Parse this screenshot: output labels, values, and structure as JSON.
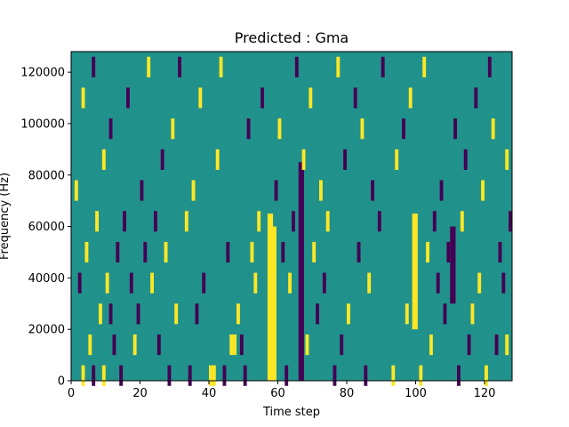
{
  "chart_data": {
    "type": "heatmap",
    "title": "Predicted : Gma",
    "xlabel": "Time step",
    "ylabel": "Frequency (Hz)",
    "xlim": [
      0,
      128
    ],
    "ylim": [
      0,
      128000
    ],
    "x_ticks": [
      0,
      20,
      40,
      60,
      80,
      100,
      120
    ],
    "y_ticks": [
      0,
      20000,
      40000,
      60000,
      80000,
      100000,
      120000
    ],
    "x_tick_labels": [
      "0",
      "20",
      "40",
      "60",
      "80",
      "100",
      "120"
    ],
    "y_tick_labels": [
      "0",
      "20000",
      "40000",
      "60000",
      "80000",
      "100000",
      "120000"
    ],
    "grid": false,
    "colormap": "viridis",
    "colors": {
      "background": "#21918c",
      "low": "#440154",
      "high": "#fde725"
    },
    "dense_columns": [
      {
        "time_step": 57,
        "value": "high",
        "y_from": 0,
        "y_to": 65000
      },
      {
        "time_step": 58,
        "value": "high",
        "y_from": 0,
        "y_to": 60000
      },
      {
        "time_step": 99,
        "value": "high",
        "y_from": 20000,
        "y_to": 65000
      },
      {
        "time_step": 110,
        "value": "low",
        "y_from": 30000,
        "y_to": 60000
      },
      {
        "time_step": 66,
        "value": "low",
        "y_from": 0,
        "y_to": 85000
      }
    ],
    "cells": [
      {
        "t": 3,
        "f": 2000,
        "v": "high"
      },
      {
        "t": 6,
        "f": 2000,
        "v": "low"
      },
      {
        "t": 9,
        "f": 2000,
        "v": "high"
      },
      {
        "t": 14,
        "f": 2000,
        "v": "low"
      },
      {
        "t": 28,
        "f": 2000,
        "v": "low"
      },
      {
        "t": 34,
        "f": 2000,
        "v": "low"
      },
      {
        "t": 40,
        "f": 2000,
        "v": "high"
      },
      {
        "t": 41,
        "f": 2000,
        "v": "high"
      },
      {
        "t": 44,
        "f": 2000,
        "v": "low"
      },
      {
        "t": 50,
        "f": 2000,
        "v": "low"
      },
      {
        "t": 62,
        "f": 2000,
        "v": "low"
      },
      {
        "t": 76,
        "f": 2000,
        "v": "low"
      },
      {
        "t": 85,
        "f": 2000,
        "v": "low"
      },
      {
        "t": 93,
        "f": 2000,
        "v": "high"
      },
      {
        "t": 101,
        "f": 2000,
        "v": "high"
      },
      {
        "t": 112,
        "f": 2000,
        "v": "low"
      },
      {
        "t": 120,
        "f": 2000,
        "v": "high"
      },
      {
        "t": 5,
        "f": 14000,
        "v": "high"
      },
      {
        "t": 12,
        "f": 14000,
        "v": "low"
      },
      {
        "t": 18,
        "f": 14000,
        "v": "high"
      },
      {
        "t": 25,
        "f": 14000,
        "v": "low"
      },
      {
        "t": 46,
        "f": 14000,
        "v": "high"
      },
      {
        "t": 47,
        "f": 14000,
        "v": "high"
      },
      {
        "t": 49,
        "f": 14000,
        "v": "low"
      },
      {
        "t": 68,
        "f": 14000,
        "v": "high"
      },
      {
        "t": 78,
        "f": 14000,
        "v": "low"
      },
      {
        "t": 104,
        "f": 14000,
        "v": "high"
      },
      {
        "t": 115,
        "f": 14000,
        "v": "low"
      },
      {
        "t": 123,
        "f": 14000,
        "v": "low"
      },
      {
        "t": 126,
        "f": 14000,
        "v": "high"
      },
      {
        "t": 8,
        "f": 26000,
        "v": "high"
      },
      {
        "t": 11,
        "f": 26000,
        "v": "low"
      },
      {
        "t": 19,
        "f": 26000,
        "v": "low"
      },
      {
        "t": 30,
        "f": 26000,
        "v": "high"
      },
      {
        "t": 36,
        "f": 26000,
        "v": "low"
      },
      {
        "t": 48,
        "f": 26000,
        "v": "high"
      },
      {
        "t": 71,
        "f": 26000,
        "v": "low"
      },
      {
        "t": 80,
        "f": 26000,
        "v": "high"
      },
      {
        "t": 97,
        "f": 26000,
        "v": "high"
      },
      {
        "t": 108,
        "f": 26000,
        "v": "low"
      },
      {
        "t": 116,
        "f": 26000,
        "v": "high"
      },
      {
        "t": 2,
        "f": 38000,
        "v": "low"
      },
      {
        "t": 10,
        "f": 38000,
        "v": "high"
      },
      {
        "t": 17,
        "f": 38000,
        "v": "low"
      },
      {
        "t": 23,
        "f": 38000,
        "v": "high"
      },
      {
        "t": 38,
        "f": 38000,
        "v": "low"
      },
      {
        "t": 53,
        "f": 38000,
        "v": "high"
      },
      {
        "t": 63,
        "f": 38000,
        "v": "high"
      },
      {
        "t": 73,
        "f": 38000,
        "v": "low"
      },
      {
        "t": 86,
        "f": 38000,
        "v": "high"
      },
      {
        "t": 106,
        "f": 38000,
        "v": "low"
      },
      {
        "t": 118,
        "f": 38000,
        "v": "high"
      },
      {
        "t": 125,
        "f": 38000,
        "v": "low"
      },
      {
        "t": 4,
        "f": 50000,
        "v": "high"
      },
      {
        "t": 13,
        "f": 50000,
        "v": "low"
      },
      {
        "t": 21,
        "f": 50000,
        "v": "low"
      },
      {
        "t": 27,
        "f": 50000,
        "v": "high"
      },
      {
        "t": 45,
        "f": 50000,
        "v": "low"
      },
      {
        "t": 52,
        "f": 50000,
        "v": "high"
      },
      {
        "t": 61,
        "f": 50000,
        "v": "low"
      },
      {
        "t": 70,
        "f": 50000,
        "v": "high"
      },
      {
        "t": 83,
        "f": 50000,
        "v": "low"
      },
      {
        "t": 103,
        "f": 50000,
        "v": "high"
      },
      {
        "t": 109,
        "f": 50000,
        "v": "low"
      },
      {
        "t": 124,
        "f": 50000,
        "v": "low"
      },
      {
        "t": 7,
        "f": 62000,
        "v": "high"
      },
      {
        "t": 15,
        "f": 62000,
        "v": "low"
      },
      {
        "t": 24,
        "f": 62000,
        "v": "low"
      },
      {
        "t": 33,
        "f": 62000,
        "v": "high"
      },
      {
        "t": 54,
        "f": 62000,
        "v": "high"
      },
      {
        "t": 64,
        "f": 62000,
        "v": "low"
      },
      {
        "t": 74,
        "f": 62000,
        "v": "high"
      },
      {
        "t": 89,
        "f": 62000,
        "v": "low"
      },
      {
        "t": 105,
        "f": 62000,
        "v": "low"
      },
      {
        "t": 113,
        "f": 62000,
        "v": "high"
      },
      {
        "t": 127,
        "f": 62000,
        "v": "low"
      },
      {
        "t": 1,
        "f": 74000,
        "v": "high"
      },
      {
        "t": 20,
        "f": 74000,
        "v": "low"
      },
      {
        "t": 35,
        "f": 74000,
        "v": "high"
      },
      {
        "t": 59,
        "f": 74000,
        "v": "low"
      },
      {
        "t": 72,
        "f": 74000,
        "v": "high"
      },
      {
        "t": 87,
        "f": 74000,
        "v": "low"
      },
      {
        "t": 107,
        "f": 74000,
        "v": "low"
      },
      {
        "t": 119,
        "f": 74000,
        "v": "high"
      },
      {
        "t": 9,
        "f": 86000,
        "v": "high"
      },
      {
        "t": 26,
        "f": 86000,
        "v": "low"
      },
      {
        "t": 42,
        "f": 86000,
        "v": "high"
      },
      {
        "t": 67,
        "f": 86000,
        "v": "high"
      },
      {
        "t": 79,
        "f": 86000,
        "v": "low"
      },
      {
        "t": 94,
        "f": 86000,
        "v": "high"
      },
      {
        "t": 114,
        "f": 86000,
        "v": "low"
      },
      {
        "t": 126,
        "f": 86000,
        "v": "high"
      },
      {
        "t": 11,
        "f": 98000,
        "v": "low"
      },
      {
        "t": 29,
        "f": 98000,
        "v": "high"
      },
      {
        "t": 51,
        "f": 98000,
        "v": "low"
      },
      {
        "t": 60,
        "f": 98000,
        "v": "high"
      },
      {
        "t": 84,
        "f": 98000,
        "v": "high"
      },
      {
        "t": 96,
        "f": 98000,
        "v": "low"
      },
      {
        "t": 111,
        "f": 98000,
        "v": "low"
      },
      {
        "t": 122,
        "f": 98000,
        "v": "high"
      },
      {
        "t": 3,
        "f": 110000,
        "v": "high"
      },
      {
        "t": 16,
        "f": 110000,
        "v": "low"
      },
      {
        "t": 37,
        "f": 110000,
        "v": "high"
      },
      {
        "t": 55,
        "f": 110000,
        "v": "low"
      },
      {
        "t": 69,
        "f": 110000,
        "v": "high"
      },
      {
        "t": 82,
        "f": 110000,
        "v": "low"
      },
      {
        "t": 98,
        "f": 110000,
        "v": "high"
      },
      {
        "t": 117,
        "f": 110000,
        "v": "low"
      },
      {
        "t": 6,
        "f": 122000,
        "v": "low"
      },
      {
        "t": 22,
        "f": 122000,
        "v": "high"
      },
      {
        "t": 31,
        "f": 122000,
        "v": "low"
      },
      {
        "t": 43,
        "f": 122000,
        "v": "high"
      },
      {
        "t": 65,
        "f": 122000,
        "v": "low"
      },
      {
        "t": 77,
        "f": 122000,
        "v": "high"
      },
      {
        "t": 90,
        "f": 122000,
        "v": "low"
      },
      {
        "t": 102,
        "f": 122000,
        "v": "high"
      },
      {
        "t": 121,
        "f": 122000,
        "v": "low"
      }
    ]
  }
}
